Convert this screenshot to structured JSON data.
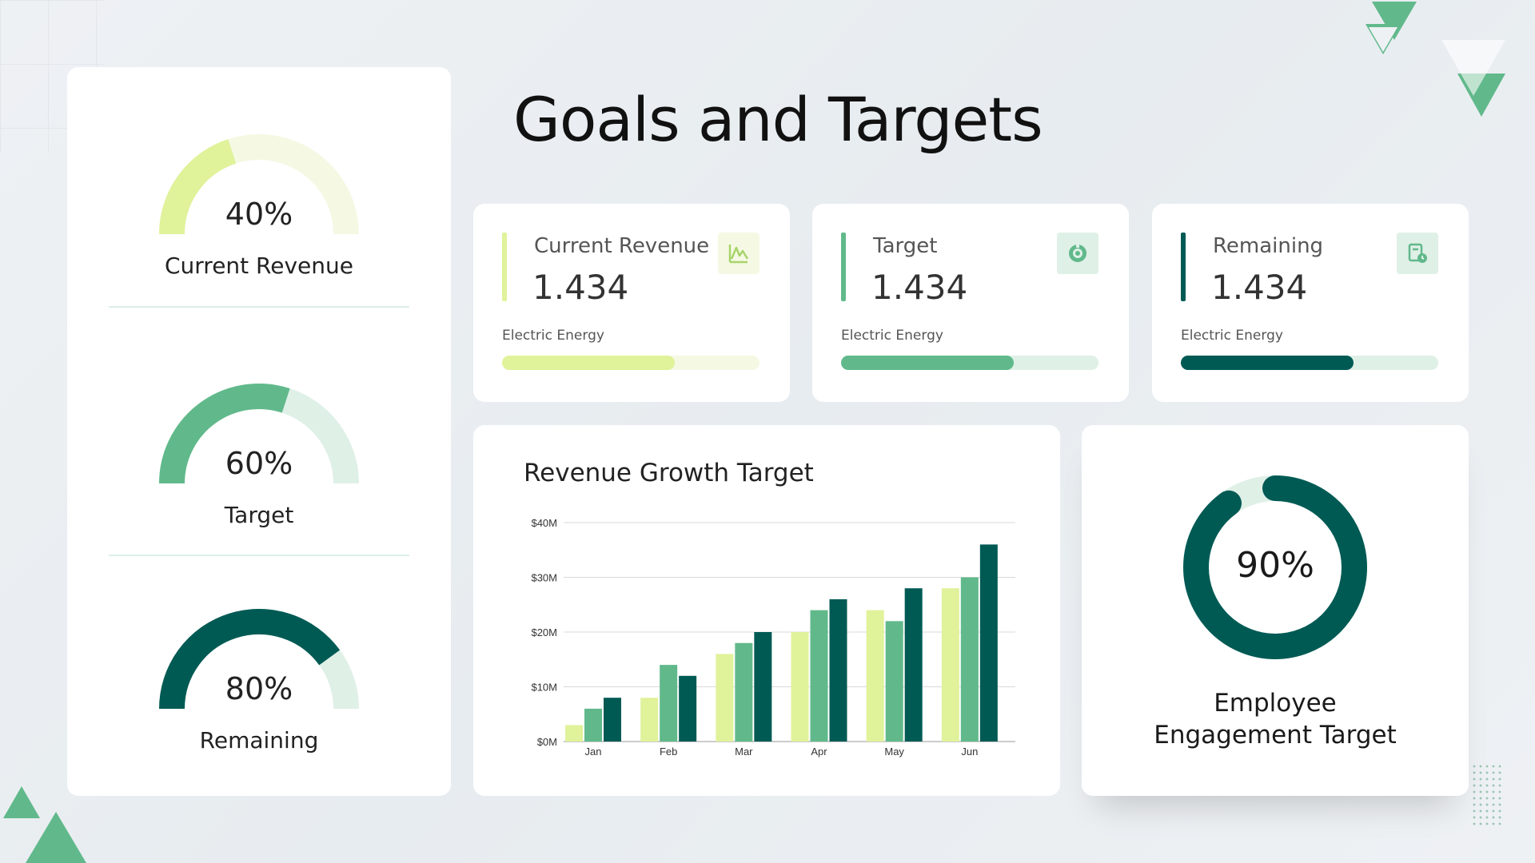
{
  "title": "Goals and Targets",
  "colors": {
    "light": "#e0f29a",
    "light_track": "#f5f9e4",
    "mid": "#61b98b",
    "mid_track": "#dff0e7",
    "dark": "#005a54",
    "dark_track": "#dff0e7"
  },
  "gauges": [
    {
      "percent_label": "40%",
      "value": 0.4,
      "label": "Current Revenue",
      "color": "#e0f29a",
      "track": "#f5f9e4"
    },
    {
      "percent_label": "60%",
      "value": 0.6,
      "label": "Target",
      "color": "#61b98b",
      "track": "#dff0e7"
    },
    {
      "percent_label": "80%",
      "value": 0.8,
      "label": "Remaining",
      "color": "#005a54",
      "track": "#dff0e7"
    }
  ],
  "stats": [
    {
      "label": "Current Revenue",
      "value": "1.434",
      "sub": "Electric Energy",
      "progress": 0.67,
      "color": "#e0f29a",
      "track": "#f5f9e4",
      "icon": "chart-line-icon"
    },
    {
      "label": "Target",
      "value": "1.434",
      "sub": "Electric Energy",
      "progress": 0.67,
      "color": "#61b98b",
      "track": "#dff0e7",
      "icon": "target-icon"
    },
    {
      "label": "Remaining",
      "value": "1.434",
      "sub": "Electric Energy",
      "progress": 0.67,
      "color": "#005a54",
      "track": "#dff0e7",
      "icon": "calendar-clock-icon"
    }
  ],
  "chart_data": {
    "type": "bar",
    "title": "Revenue Growth Target",
    "categories": [
      "Jan",
      "Feb",
      "Mar",
      "Apr",
      "May",
      "Jun"
    ],
    "series": [
      {
        "name": "Current Revenue",
        "color": "#e0f29a",
        "values": [
          3,
          8,
          16,
          20,
          24,
          28
        ]
      },
      {
        "name": "Target",
        "color": "#61b98b",
        "values": [
          6,
          14,
          18,
          24,
          22,
          30
        ]
      },
      {
        "name": "Remaining",
        "color": "#005a54",
        "values": [
          8,
          12,
          20,
          26,
          28,
          36
        ]
      }
    ],
    "yticks": [
      "$0M",
      "$10M",
      "$20M",
      "$30M",
      "$40M"
    ],
    "ylim": [
      0,
      40
    ],
    "xlabel": "",
    "ylabel": "",
    "grid": true
  },
  "donut": {
    "percent_label": "90%",
    "value": 0.9,
    "label_line1": "Employee",
    "label_line2": "Engagement Target",
    "color": "#005a54",
    "track": "#dff0e7"
  }
}
